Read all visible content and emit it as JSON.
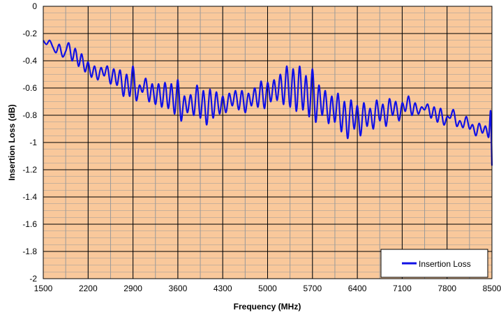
{
  "chart_data": {
    "type": "line",
    "title": "",
    "xlabel": "Frequency (MHz)",
    "ylabel": "Insertion Loss (dB)",
    "xlim": [
      1500,
      8500
    ],
    "ylim": [
      -2,
      0
    ],
    "x_ticks": [
      1500,
      2200,
      2900,
      3600,
      4300,
      5000,
      5700,
      6400,
      7100,
      7800,
      8500
    ],
    "y_ticks": [
      0,
      -0.2,
      -0.4,
      -0.6,
      -0.8,
      -1,
      -1.2,
      -1.4,
      -1.6,
      -1.8,
      -2
    ],
    "x_minor_step": 350,
    "y_minor_step": 0.05,
    "grid": true,
    "legend_position": "bottom-right",
    "colors": {
      "plot_background": "#F9C89B",
      "major_grid": "#000000",
      "minor_grid": "#9A9A9A",
      "line": "#1010E6"
    },
    "series": [
      {
        "name": "Insertion Loss",
        "x": [
          1500,
          1550,
          1600,
          1650,
          1700,
          1750,
          1800,
          1850,
          1900,
          1950,
          2000,
          2050,
          2100,
          2150,
          2200,
          2250,
          2300,
          2350,
          2400,
          2450,
          2500,
          2550,
          2600,
          2650,
          2700,
          2750,
          2800,
          2850,
          2900,
          2950,
          3000,
          3050,
          3100,
          3150,
          3200,
          3250,
          3300,
          3350,
          3400,
          3450,
          3500,
          3550,
          3600,
          3650,
          3700,
          3750,
          3800,
          3850,
          3900,
          3950,
          4000,
          4050,
          4100,
          4150,
          4200,
          4250,
          4300,
          4350,
          4400,
          4450,
          4500,
          4550,
          4600,
          4650,
          4700,
          4750,
          4800,
          4850,
          4900,
          4950,
          5000,
          5050,
          5100,
          5150,
          5200,
          5250,
          5300,
          5350,
          5400,
          5450,
          5500,
          5550,
          5600,
          5650,
          5700,
          5750,
          5800,
          5850,
          5900,
          5950,
          6000,
          6050,
          6100,
          6150,
          6200,
          6250,
          6300,
          6350,
          6400,
          6450,
          6500,
          6550,
          6600,
          6650,
          6700,
          6750,
          6800,
          6850,
          6900,
          6950,
          7000,
          7050,
          7100,
          7150,
          7200,
          7250,
          7300,
          7350,
          7400,
          7450,
          7500,
          7550,
          7600,
          7650,
          7700,
          7750,
          7800,
          7850,
          7900,
          7950,
          8000,
          8050,
          8100,
          8150,
          8200,
          8250,
          8300,
          8350,
          8400,
          8450,
          8480,
          8500
        ],
        "values": [
          -0.25,
          -0.28,
          -0.25,
          -0.3,
          -0.34,
          -0.28,
          -0.37,
          -0.33,
          -0.27,
          -0.4,
          -0.31,
          -0.44,
          -0.35,
          -0.48,
          -0.41,
          -0.52,
          -0.44,
          -0.54,
          -0.45,
          -0.51,
          -0.44,
          -0.57,
          -0.46,
          -0.58,
          -0.47,
          -0.66,
          -0.5,
          -0.66,
          -0.44,
          -0.69,
          -0.58,
          -0.63,
          -0.53,
          -0.7,
          -0.57,
          -0.72,
          -0.57,
          -0.74,
          -0.56,
          -0.75,
          -0.57,
          -0.79,
          -0.54,
          -0.84,
          -0.66,
          -0.78,
          -0.65,
          -0.8,
          -0.58,
          -0.82,
          -0.62,
          -0.87,
          -0.61,
          -0.82,
          -0.63,
          -0.79,
          -0.66,
          -0.78,
          -0.64,
          -0.73,
          -0.62,
          -0.76,
          -0.62,
          -0.78,
          -0.64,
          -0.73,
          -0.6,
          -0.74,
          -0.55,
          -0.75,
          -0.56,
          -0.7,
          -0.54,
          -0.69,
          -0.5,
          -0.72,
          -0.44,
          -0.74,
          -0.46,
          -0.77,
          -0.44,
          -0.76,
          -0.51,
          -0.81,
          -0.46,
          -0.85,
          -0.58,
          -0.8,
          -0.62,
          -0.86,
          -0.66,
          -0.85,
          -0.64,
          -0.92,
          -0.7,
          -0.97,
          -0.69,
          -0.9,
          -0.73,
          -0.95,
          -0.71,
          -0.88,
          -0.75,
          -0.9,
          -0.69,
          -0.84,
          -0.72,
          -0.88,
          -0.68,
          -0.8,
          -0.7,
          -0.84,
          -0.71,
          -0.77,
          -0.66,
          -0.8,
          -0.71,
          -0.79,
          -0.74,
          -0.76,
          -0.72,
          -0.82,
          -0.74,
          -0.85,
          -0.75,
          -0.87,
          -0.81,
          -0.82,
          -0.76,
          -0.88,
          -0.84,
          -0.89,
          -0.81,
          -0.9,
          -0.87,
          -0.95,
          -0.86,
          -0.93,
          -0.88,
          -0.96,
          -0.77,
          -1.17
        ]
      }
    ]
  }
}
